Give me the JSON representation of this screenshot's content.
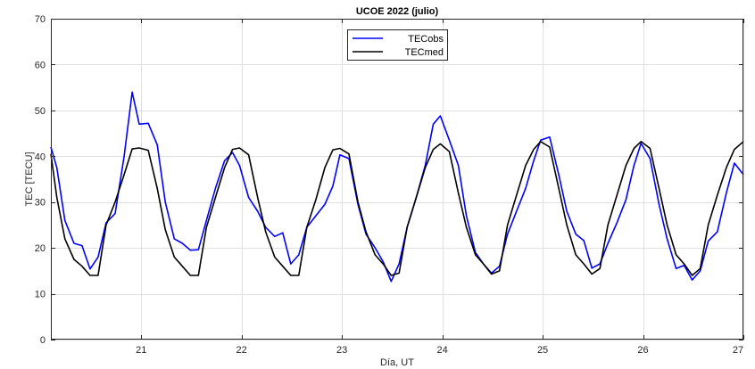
{
  "chart_data": {
    "type": "line",
    "title": "UCOE 2022 (julio)",
    "xlabel": "Día, UT",
    "ylabel": "TEC [TECU]",
    "xlim": [
      20.1,
      27
    ],
    "ylim": [
      0,
      70
    ],
    "xticks": [
      21,
      22,
      23,
      24,
      25,
      26,
      27
    ],
    "yticks": [
      0,
      10,
      20,
      30,
      40,
      50,
      60,
      70
    ],
    "grid": true,
    "legend_position": "top-center",
    "series": [
      {
        "name": "TECobs",
        "color": "#0000ff",
        "points": [
          [
            20.1,
            42
          ],
          [
            20.16,
            37.5
          ],
          [
            20.24,
            26
          ],
          [
            20.33,
            21
          ],
          [
            20.41,
            20.5
          ],
          [
            20.49,
            15.4
          ],
          [
            20.57,
            18
          ],
          [
            20.65,
            25.5
          ],
          [
            20.74,
            27.5
          ],
          [
            20.83,
            40
          ],
          [
            20.91,
            54
          ],
          [
            20.98,
            47
          ],
          [
            21.07,
            47.2
          ],
          [
            21.16,
            42.5
          ],
          [
            21.24,
            30
          ],
          [
            21.33,
            22
          ],
          [
            21.41,
            21
          ],
          [
            21.49,
            19.5
          ],
          [
            21.57,
            19.6
          ],
          [
            21.65,
            26
          ],
          [
            21.74,
            33
          ],
          [
            21.83,
            39
          ],
          [
            21.91,
            40.8
          ],
          [
            21.98,
            38
          ],
          [
            22.07,
            31
          ],
          [
            22.16,
            28
          ],
          [
            22.24,
            24.5
          ],
          [
            22.33,
            22.5
          ],
          [
            22.41,
            23.3
          ],
          [
            22.49,
            16.5
          ],
          [
            22.57,
            18.5
          ],
          [
            22.65,
            24.5
          ],
          [
            22.74,
            27
          ],
          [
            22.83,
            29.5
          ],
          [
            22.91,
            33.5
          ],
          [
            22.98,
            40.3
          ],
          [
            23.07,
            39.5
          ],
          [
            23.16,
            29.5
          ],
          [
            23.24,
            23
          ],
          [
            23.33,
            20
          ],
          [
            23.41,
            17
          ],
          [
            23.49,
            12.7
          ],
          [
            23.57,
            16.5
          ],
          [
            23.65,
            24.5
          ],
          [
            23.74,
            31
          ],
          [
            23.83,
            38
          ],
          [
            23.91,
            47
          ],
          [
            23.98,
            48.8
          ],
          [
            24.07,
            43.5
          ],
          [
            24.16,
            38
          ],
          [
            24.24,
            27
          ],
          [
            24.33,
            19
          ],
          [
            24.41,
            16.5
          ],
          [
            24.49,
            14.5
          ],
          [
            24.57,
            16
          ],
          [
            24.65,
            23
          ],
          [
            24.74,
            28
          ],
          [
            24.83,
            33
          ],
          [
            24.91,
            39
          ],
          [
            24.98,
            43.5
          ],
          [
            25.07,
            44.2
          ],
          [
            25.16,
            36
          ],
          [
            25.24,
            28
          ],
          [
            25.33,
            23
          ],
          [
            25.41,
            21.6
          ],
          [
            25.49,
            15.6
          ],
          [
            25.57,
            16.5
          ],
          [
            25.65,
            21
          ],
          [
            25.74,
            25.5
          ],
          [
            25.83,
            30.5
          ],
          [
            25.91,
            38
          ],
          [
            25.98,
            42.8
          ],
          [
            26.07,
            39.5
          ],
          [
            26.16,
            29.5
          ],
          [
            26.24,
            22
          ],
          [
            26.33,
            15.5
          ],
          [
            26.41,
            16.2
          ],
          [
            26.49,
            13
          ],
          [
            26.57,
            15
          ],
          [
            26.65,
            21.5
          ],
          [
            26.74,
            23.5
          ],
          [
            26.83,
            32
          ],
          [
            26.91,
            38.5
          ],
          [
            27.0,
            36
          ]
        ]
      },
      {
        "name": "TECmed",
        "color": "#000000",
        "points": [
          [
            20.1,
            40.5
          ],
          [
            20.16,
            31
          ],
          [
            20.24,
            22
          ],
          [
            20.33,
            17.5
          ],
          [
            20.41,
            16
          ],
          [
            20.49,
            14
          ],
          [
            20.57,
            14
          ],
          [
            20.65,
            25
          ],
          [
            20.74,
            30
          ],
          [
            20.83,
            36
          ],
          [
            20.91,
            41.6
          ],
          [
            20.98,
            41.8
          ],
          [
            21.07,
            41.3
          ],
          [
            21.16,
            33
          ],
          [
            21.24,
            24
          ],
          [
            21.33,
            18
          ],
          [
            21.41,
            16
          ],
          [
            21.49,
            14
          ],
          [
            21.57,
            14
          ],
          [
            21.65,
            24.5
          ],
          [
            21.74,
            31
          ],
          [
            21.83,
            37.5
          ],
          [
            21.91,
            41.5
          ],
          [
            21.98,
            41.8
          ],
          [
            22.07,
            40.3
          ],
          [
            22.16,
            31
          ],
          [
            22.24,
            23.5
          ],
          [
            22.33,
            18
          ],
          [
            22.41,
            16
          ],
          [
            22.49,
            14
          ],
          [
            22.57,
            14
          ],
          [
            22.65,
            24.5
          ],
          [
            22.74,
            30.5
          ],
          [
            22.83,
            37.5
          ],
          [
            22.91,
            41.4
          ],
          [
            22.98,
            41.7
          ],
          [
            23.07,
            40.5
          ],
          [
            23.16,
            30
          ],
          [
            23.24,
            23.5
          ],
          [
            23.33,
            18.5
          ],
          [
            23.41,
            16.5
          ],
          [
            23.49,
            14
          ],
          [
            23.57,
            14.5
          ],
          [
            23.65,
            24.5
          ],
          [
            23.74,
            31
          ],
          [
            23.83,
            37.5
          ],
          [
            23.91,
            41.5
          ],
          [
            23.98,
            42.7
          ],
          [
            24.07,
            41
          ],
          [
            24.16,
            32
          ],
          [
            24.24,
            24.5
          ],
          [
            24.33,
            18.5
          ],
          [
            24.41,
            16.5
          ],
          [
            24.49,
            14.3
          ],
          [
            24.57,
            15
          ],
          [
            24.65,
            25
          ],
          [
            24.74,
            31.5
          ],
          [
            24.83,
            38
          ],
          [
            24.91,
            41.5
          ],
          [
            24.98,
            43.2
          ],
          [
            25.07,
            42
          ],
          [
            25.16,
            33
          ],
          [
            25.24,
            25
          ],
          [
            25.33,
            18.5
          ],
          [
            25.41,
            16.5
          ],
          [
            25.49,
            14.3
          ],
          [
            25.57,
            15.5
          ],
          [
            25.65,
            25
          ],
          [
            25.74,
            31.5
          ],
          [
            25.83,
            38
          ],
          [
            25.91,
            41.7
          ],
          [
            25.98,
            43.2
          ],
          [
            26.07,
            41.7
          ],
          [
            26.16,
            33
          ],
          [
            26.24,
            25
          ],
          [
            26.33,
            18.5
          ],
          [
            26.41,
            16.5
          ],
          [
            26.49,
            14
          ],
          [
            26.57,
            15.5
          ],
          [
            26.65,
            25
          ],
          [
            26.74,
            31.5
          ],
          [
            26.83,
            37.5
          ],
          [
            26.91,
            41.5
          ],
          [
            27.0,
            43.2
          ]
        ]
      }
    ]
  }
}
